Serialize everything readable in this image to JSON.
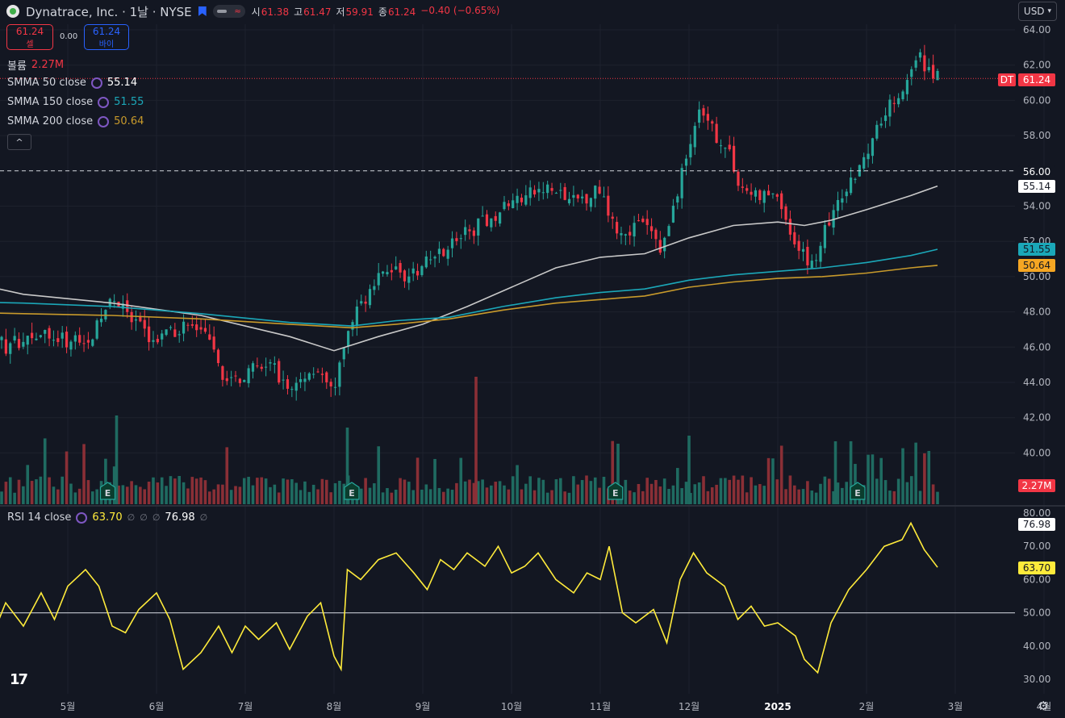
{
  "header": {
    "symbol_title": "Dynatrace, Inc. · 1날 · NYSE",
    "pill_icon": "≈",
    "ohlc": [
      {
        "k": "시",
        "v": "61.38"
      },
      {
        "k": "고",
        "v": "61.47"
      },
      {
        "k": "저",
        "v": "59.91"
      },
      {
        "k": "종",
        "v": "61.24"
      },
      {
        "k": "",
        "v": "−0.40 (−0.65%)"
      }
    ],
    "currency": "USD"
  },
  "trade": {
    "sell_price": "61.24",
    "sell_label": "셀",
    "spread": "0.00",
    "buy_price": "61.24",
    "buy_label": "바이"
  },
  "legend": {
    "volume_name": "볼륨",
    "volume_value": "2.27M",
    "smma50_name": "SMMA 50 close",
    "smma50_value": "55.14",
    "smma150_name": "SMMA 150 close",
    "smma150_value": "51.55",
    "smma200_name": "SMMA 200 close",
    "smma200_value": "50.64",
    "collapse_icon": "^",
    "rsi_name": "RSI 14 close",
    "rsi_value": "63.70",
    "rsi_null": "∅",
    "rsi_upper": "76.98"
  },
  "tags": {
    "dt_label": "DT",
    "last_price": "61.24",
    "crosshair_price": "56.00",
    "smma50": "55.14",
    "smma150": "51.55",
    "smma200": "50.64",
    "volume": "2.27M",
    "rsi_upper": "76.98",
    "rsi_value": "63.70"
  },
  "colors": {
    "bg": "#131722",
    "up": "#26a69a",
    "down": "#f23645",
    "smma50": "#c9c9c9",
    "smma150": "#1ba7b8",
    "smma200": "#c89a2b",
    "rsi": "#ffeb3b",
    "grid": "#1e222d"
  },
  "chart_data": [
    {
      "type": "candlestick",
      "title": "Dynatrace, Inc. · 1날 · NYSE",
      "y_ticks": [
        "64.00",
        "62.00",
        "60.00",
        "58.00",
        "56.00",
        "54.00",
        "52.00",
        "50.00",
        "48.00",
        "46.00",
        "44.00",
        "42.00",
        "40.00"
      ],
      "ylim": [
        40,
        64
      ],
      "x_ticks": [
        "5월",
        "6월",
        "7월",
        "8월",
        "9월",
        "10월",
        "11월",
        "12월",
        "2025",
        "2월",
        "3월",
        "4월"
      ],
      "close_path": [
        [
          4.0,
          47.6
        ],
        [
          4.3,
          46.0
        ],
        [
          4.6,
          46.8
        ],
        [
          5.0,
          46.3
        ],
        [
          5.3,
          46.8
        ],
        [
          5.5,
          49.0
        ],
        [
          5.7,
          47.5
        ],
        [
          6.0,
          46.3
        ],
        [
          6.3,
          47.2
        ],
        [
          6.5,
          47.0
        ],
        [
          6.8,
          44.0
        ],
        [
          7.0,
          44.5
        ],
        [
          7.3,
          45.0
        ],
        [
          7.5,
          43.5
        ],
        [
          7.8,
          45.0
        ],
        [
          8.0,
          43.0
        ],
        [
          8.1,
          46.0
        ],
        [
          8.3,
          48.5
        ],
        [
          8.6,
          50.5
        ],
        [
          8.9,
          50.0
        ],
        [
          9.2,
          51.5
        ],
        [
          9.5,
          52.5
        ],
        [
          9.8,
          53.5
        ],
        [
          10.1,
          54.5
        ],
        [
          10.4,
          55.0
        ],
        [
          10.7,
          54.2
        ],
        [
          11.0,
          55.0
        ],
        [
          11.2,
          52.5
        ],
        [
          11.5,
          53.0
        ],
        [
          11.7,
          51.5
        ],
        [
          11.9,
          55.5
        ],
        [
          12.1,
          59.2
        ],
        [
          12.4,
          57.5
        ],
        [
          12.6,
          55.0
        ],
        [
          12.8,
          54.5
        ],
        [
          13.0,
          54.8
        ],
        [
          13.2,
          51.5
        ],
        [
          13.4,
          50.8
        ],
        [
          13.6,
          53.5
        ],
        [
          13.8,
          55.0
        ],
        [
          14.0,
          57.2
        ],
        [
          14.2,
          59.5
        ],
        [
          14.4,
          60.5
        ],
        [
          14.6,
          62.4
        ],
        [
          14.8,
          61.24
        ]
      ],
      "volume": {
        "last": "2.27M"
      },
      "earnings_markers": [
        "E",
        "E",
        "E",
        "E"
      ],
      "last_price": 61.24,
      "horizontal_line": 56.0,
      "series": [
        {
          "name": "SMMA 50 close",
          "last": 55.14,
          "values": [
            [
              3.6,
              50.0
            ],
            [
              4.5,
              49.0
            ],
            [
              5.5,
              48.5
            ],
            [
              6.5,
              47.8
            ],
            [
              7.5,
              46.6
            ],
            [
              8.0,
              45.8
            ],
            [
              8.5,
              46.6
            ],
            [
              9.0,
              47.3
            ],
            [
              9.5,
              48.3
            ],
            [
              10.0,
              49.4
            ],
            [
              10.5,
              50.5
            ],
            [
              11.0,
              51.1
            ],
            [
              11.5,
              51.3
            ],
            [
              12.0,
              52.2
            ],
            [
              12.5,
              52.9
            ],
            [
              13.0,
              53.1
            ],
            [
              13.3,
              52.9
            ],
            [
              13.6,
              53.2
            ],
            [
              14.0,
              53.8
            ],
            [
              14.5,
              54.6
            ],
            [
              14.8,
              55.14
            ]
          ]
        },
        {
          "name": "SMMA 150 close",
          "last": 51.55,
          "values": [
            [
              3.6,
              48.6
            ],
            [
              4.5,
              48.5
            ],
            [
              5.5,
              48.3
            ],
            [
              6.5,
              47.9
            ],
            [
              7.5,
              47.4
            ],
            [
              8.2,
              47.2
            ],
            [
              8.7,
              47.5
            ],
            [
              9.3,
              47.7
            ],
            [
              9.9,
              48.3
            ],
            [
              10.5,
              48.8
            ],
            [
              11.0,
              49.1
            ],
            [
              11.5,
              49.3
            ],
            [
              12.0,
              49.8
            ],
            [
              12.5,
              50.1
            ],
            [
              13.0,
              50.3
            ],
            [
              13.5,
              50.5
            ],
            [
              14.0,
              50.8
            ],
            [
              14.5,
              51.2
            ],
            [
              14.8,
              51.55
            ]
          ]
        },
        {
          "name": "SMMA 200 close",
          "last": 50.64,
          "values": [
            [
              3.6,
              48.0
            ],
            [
              4.5,
              47.9
            ],
            [
              5.5,
              47.8
            ],
            [
              6.5,
              47.6
            ],
            [
              7.5,
              47.3
            ],
            [
              8.2,
              47.1
            ],
            [
              8.7,
              47.3
            ],
            [
              9.3,
              47.6
            ],
            [
              9.9,
              48.1
            ],
            [
              10.5,
              48.5
            ],
            [
              11.0,
              48.7
            ],
            [
              11.5,
              48.9
            ],
            [
              12.0,
              49.4
            ],
            [
              12.5,
              49.7
            ],
            [
              13.0,
              49.9
            ],
            [
              13.5,
              50.0
            ],
            [
              14.0,
              50.2
            ],
            [
              14.5,
              50.5
            ],
            [
              14.8,
              50.64
            ]
          ]
        }
      ]
    },
    {
      "type": "line",
      "title": "RSI 14 close",
      "y_ticks": [
        "80.00",
        "70.00",
        "60.00",
        "50.00",
        "40.00",
        "30.00"
      ],
      "ylim": [
        26,
        81
      ],
      "reference_line": 50,
      "series": [
        {
          "name": "RSI 14 close",
          "last": 63.7,
          "values": [
            [
              3.6,
              53
            ],
            [
              3.75,
              48
            ],
            [
              3.9,
              35
            ],
            [
              4.0,
              48
            ],
            [
              4.15,
              43
            ],
            [
              4.3,
              53
            ],
            [
              4.5,
              46
            ],
            [
              4.7,
              56
            ],
            [
              4.85,
              48
            ],
            [
              5.0,
              58
            ],
            [
              5.2,
              63
            ],
            [
              5.35,
              58
            ],
            [
              5.5,
              46
            ],
            [
              5.65,
              44
            ],
            [
              5.8,
              51
            ],
            [
              6.0,
              56
            ],
            [
              6.15,
              48
            ],
            [
              6.3,
              33
            ],
            [
              6.5,
              38
            ],
            [
              6.7,
              46
            ],
            [
              6.85,
              38
            ],
            [
              7.0,
              46
            ],
            [
              7.15,
              42
            ],
            [
              7.35,
              47
            ],
            [
              7.5,
              39
            ],
            [
              7.7,
              49
            ],
            [
              7.85,
              53
            ],
            [
              8.0,
              37
            ],
            [
              8.08,
              33
            ],
            [
              8.15,
              63
            ],
            [
              8.3,
              60
            ],
            [
              8.5,
              66
            ],
            [
              8.7,
              68
            ],
            [
              8.9,
              62
            ],
            [
              9.05,
              57
            ],
            [
              9.2,
              66
            ],
            [
              9.35,
              63
            ],
            [
              9.5,
              68
            ],
            [
              9.7,
              64
            ],
            [
              9.85,
              70
            ],
            [
              10.0,
              62
            ],
            [
              10.15,
              64
            ],
            [
              10.3,
              68
            ],
            [
              10.5,
              60
            ],
            [
              10.7,
              56
            ],
            [
              10.85,
              62
            ],
            [
              11.0,
              60
            ],
            [
              11.1,
              70
            ],
            [
              11.25,
              50
            ],
            [
              11.4,
              47
            ],
            [
              11.6,
              51
            ],
            [
              11.75,
              41
            ],
            [
              11.9,
              60
            ],
            [
              12.05,
              68
            ],
            [
              12.2,
              62
            ],
            [
              12.4,
              58
            ],
            [
              12.55,
              48
            ],
            [
              12.7,
              52
            ],
            [
              12.85,
              46
            ],
            [
              13.0,
              47
            ],
            [
              13.2,
              43
            ],
            [
              13.3,
              36
            ],
            [
              13.45,
              32
            ],
            [
              13.6,
              47
            ],
            [
              13.8,
              57
            ],
            [
              14.0,
              63
            ],
            [
              14.2,
              70
            ],
            [
              14.4,
              72
            ],
            [
              14.5,
              77
            ],
            [
              14.65,
              69
            ],
            [
              14.8,
              63.7
            ]
          ]
        }
      ]
    }
  ]
}
